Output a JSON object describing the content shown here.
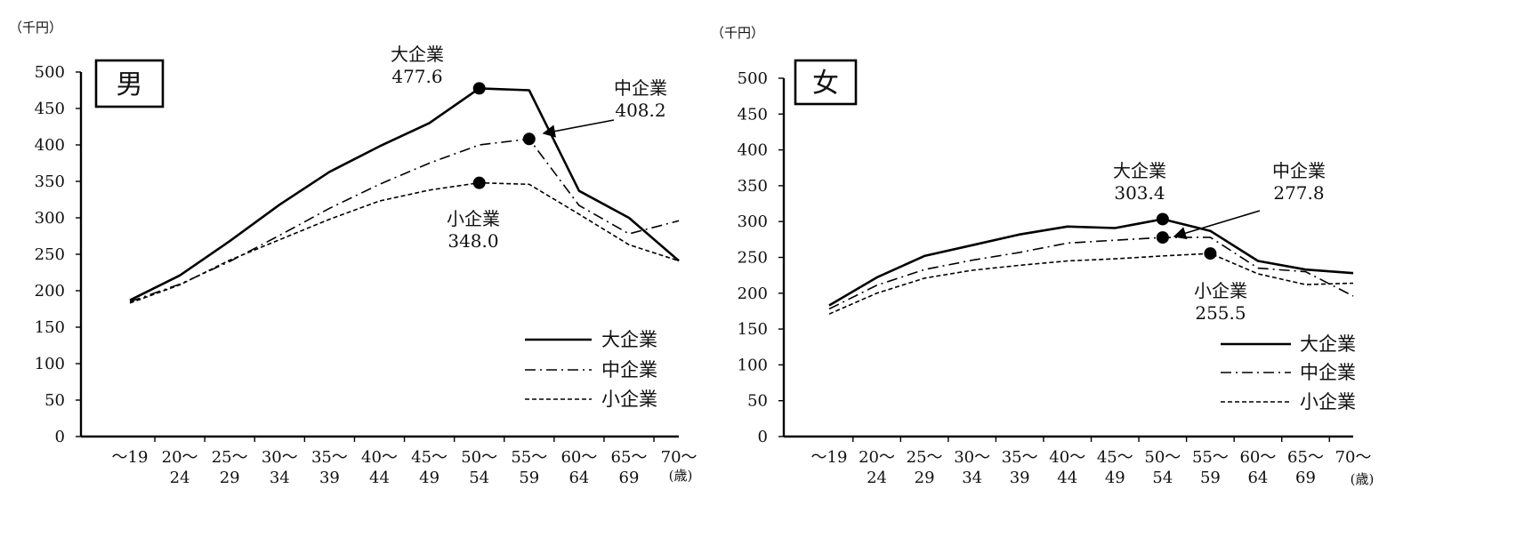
{
  "chart_data": [
    {
      "type": "line",
      "badge": "男",
      "unit_label": "（千円）",
      "x_unit_label": "(歳)",
      "x_tick_lines": [
        [
          "～19",
          ""
        ],
        [
          "20～",
          "24"
        ],
        [
          "25～",
          "29"
        ],
        [
          "30～",
          "34"
        ],
        [
          "35～",
          "39"
        ],
        [
          "40～",
          "44"
        ],
        [
          "45～",
          "49"
        ],
        [
          "50～",
          "54"
        ],
        [
          "55～",
          "59"
        ],
        [
          "60～",
          "64"
        ],
        [
          "65～",
          "69"
        ],
        [
          "70～",
          ""
        ]
      ],
      "y_ticks": [
        "0",
        "50",
        "100",
        "150",
        "200",
        "250",
        "300",
        "350",
        "400",
        "450",
        "500"
      ],
      "ylim": [
        0,
        500
      ],
      "series": [
        {
          "name": "大企業",
          "style": "solid",
          "values": [
            187,
            221,
            268,
            318,
            363,
            398,
            430,
            477.6,
            475,
            337,
            300,
            241
          ]
        },
        {
          "name": "中企業",
          "style": "dashdot",
          "values": [
            185,
            209,
            240,
            276,
            313,
            346,
            375,
            400,
            408.2,
            317,
            278,
            296
          ]
        },
        {
          "name": "小企業",
          "style": "dashed",
          "values": [
            183,
            208,
            242,
            270,
            298,
            323,
            338,
            348.0,
            346,
            305,
            263,
            241
          ]
        }
      ],
      "annotations": [
        {
          "name": "大企業",
          "value": "477.6",
          "series": 0,
          "index": 7
        },
        {
          "name": "中企業",
          "value": "408.2",
          "series": 1,
          "index": 8
        },
        {
          "name": "小企業",
          "value": "348.0",
          "series": 2,
          "index": 7
        }
      ],
      "legend": {
        "placement": "bottom-right",
        "labels": [
          "大企業",
          "中企業",
          "小企業"
        ]
      }
    },
    {
      "type": "line",
      "badge": "女",
      "unit_label": "（千円）",
      "x_unit_label": "(歳)",
      "x_tick_lines": [
        [
          "～19",
          ""
        ],
        [
          "20～",
          "24"
        ],
        [
          "25～",
          "29"
        ],
        [
          "30～",
          "34"
        ],
        [
          "35～",
          "39"
        ],
        [
          "40～",
          "44"
        ],
        [
          "45～",
          "49"
        ],
        [
          "50～",
          "54"
        ],
        [
          "55～",
          "59"
        ],
        [
          "60～",
          "64"
        ],
        [
          "65～",
          "69"
        ],
        [
          "70～",
          ""
        ]
      ],
      "y_ticks": [
        "0",
        "50",
        "100",
        "150",
        "200",
        "250",
        "300",
        "350",
        "400",
        "450",
        "500"
      ],
      "ylim": [
        0,
        500
      ],
      "series": [
        {
          "name": "大企業",
          "style": "solid",
          "values": [
            183,
            222,
            252,
            267,
            282,
            293,
            291,
            303.4,
            287,
            245,
            233,
            228
          ]
        },
        {
          "name": "中企業",
          "style": "dashdot",
          "values": [
            178,
            211,
            233,
            246,
            257,
            270,
            274,
            277.8,
            278,
            235,
            230,
            196
          ]
        },
        {
          "name": "小企業",
          "style": "dashed",
          "values": [
            171,
            200,
            221,
            232,
            239,
            245,
            248,
            252,
            255.5,
            227,
            212,
            214
          ]
        }
      ],
      "annotations": [
        {
          "name": "大企業",
          "value": "303.4",
          "series": 0,
          "index": 7
        },
        {
          "name": "中企業",
          "value": "277.8",
          "series": 1,
          "index": 7
        },
        {
          "name": "小企業",
          "value": "255.5",
          "series": 2,
          "index": 8
        }
      ],
      "legend": {
        "placement": "bottom-right",
        "labels": [
          "大企業",
          "中企業",
          "小企業"
        ]
      }
    }
  ]
}
